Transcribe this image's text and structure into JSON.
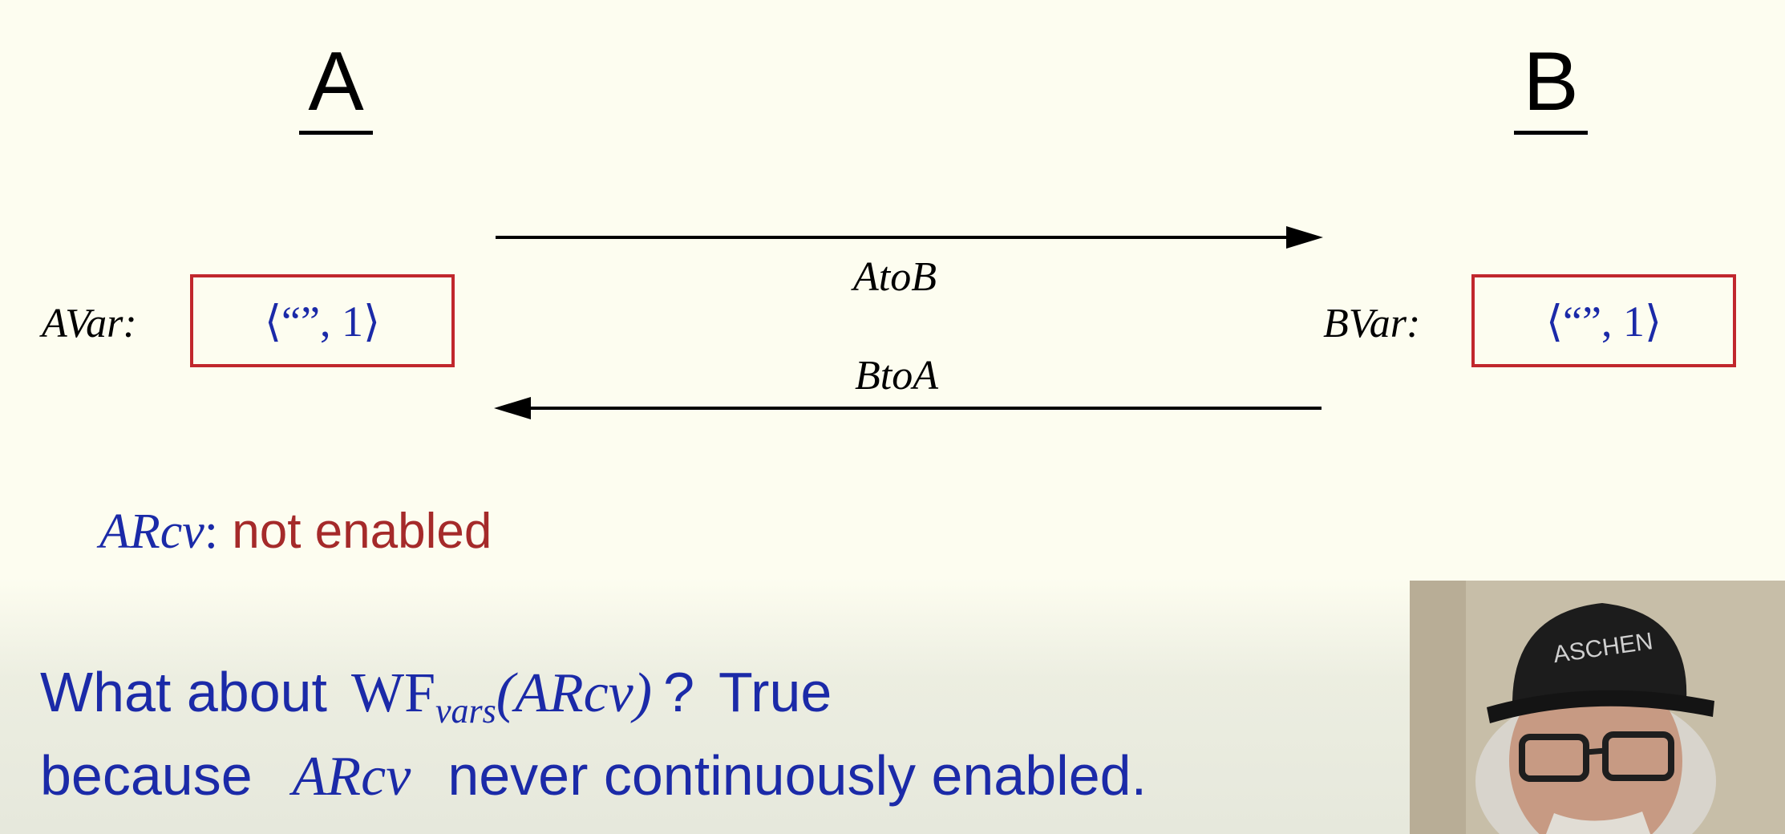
{
  "process_a": {
    "title": "A"
  },
  "process_b": {
    "title": "B"
  },
  "a_var": {
    "label": "AVar:",
    "value": "⟨“”, 1⟩"
  },
  "b_var": {
    "label": "BVar:",
    "value": "⟨“”, 1⟩"
  },
  "channels": {
    "a_to_b": {
      "label": "AtoB"
    },
    "b_to_a": {
      "label": "BtoA"
    }
  },
  "arcv_status": {
    "action": "ARcv",
    "colon": ":",
    "status": "not enabled"
  },
  "statement": {
    "line1_prefix": "What about",
    "wf": "WF",
    "wf_sub": "vars",
    "wf_arg": "(ARcv)",
    "question_mark": "?",
    "answer": "True",
    "line2_prefix": "because",
    "line2_action": "ARcv",
    "line2_suffix": "never continuously enabled."
  },
  "colors": {
    "background": "#fdfdf0",
    "box_border": "#c1272d",
    "math_blue": "#1b2aa8",
    "status_red": "#a52a2a"
  }
}
